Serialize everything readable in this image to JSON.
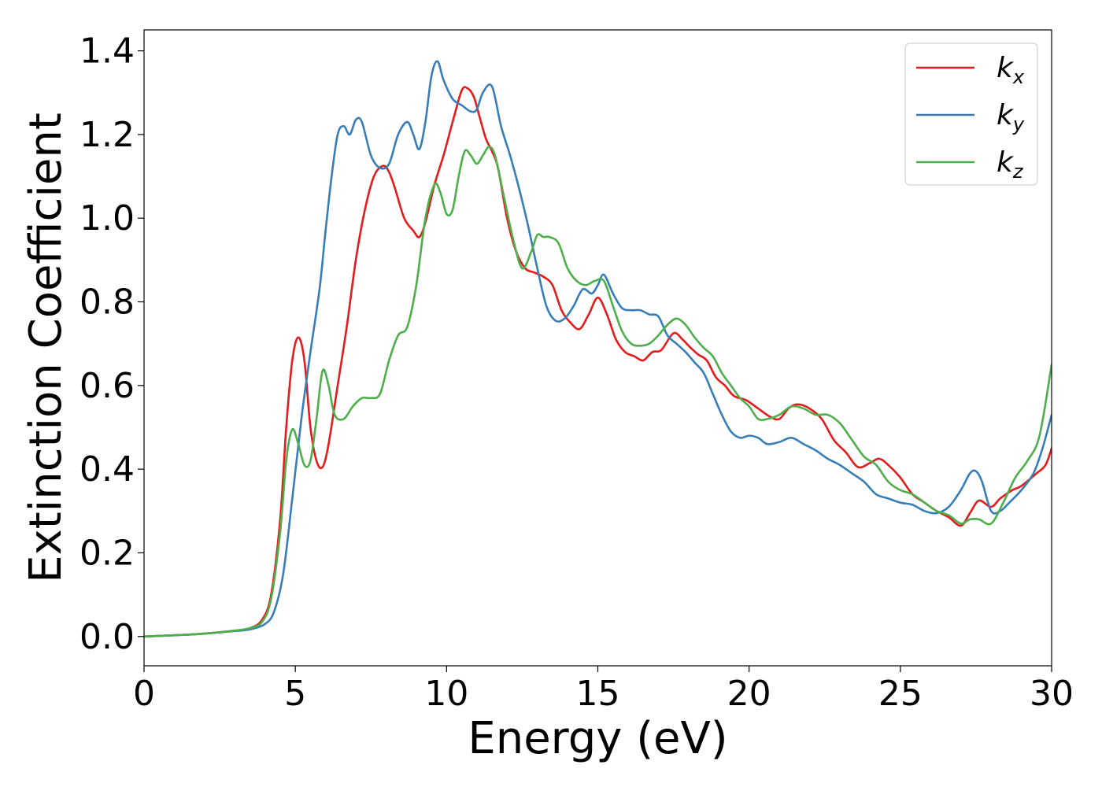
{
  "chart_data": {
    "type": "line",
    "title": "",
    "xlabel": "Energy (eV)",
    "ylabel": "Extinction Coefficient",
    "xlim": [
      0,
      30
    ],
    "ylim": [
      -0.07,
      1.45
    ],
    "xticks": [
      0,
      5,
      10,
      15,
      20,
      25,
      30
    ],
    "xtick_labels": [
      "0",
      "5",
      "10",
      "15",
      "20",
      "25",
      "30"
    ],
    "yticks": [
      0.0,
      0.2,
      0.4,
      0.6,
      0.8,
      1.0,
      1.2,
      1.4
    ],
    "ytick_labels": [
      "0.0",
      "0.2",
      "0.4",
      "0.6",
      "0.8",
      "1.0",
      "1.2",
      "1.4"
    ],
    "grid": false,
    "legend_position": "top-right",
    "series": [
      {
        "name": "k",
        "subscript": "x",
        "color": "#e41a1c",
        "x": [
          0,
          1,
          2,
          3,
          3.5,
          3.9,
          4.2,
          4.5,
          4.7,
          4.9,
          5.1,
          5.3,
          5.5,
          5.7,
          5.9,
          6.1,
          6.4,
          6.7,
          7.0,
          7.3,
          7.6,
          7.9,
          8.1,
          8.3,
          8.6,
          8.9,
          9.1,
          9.3,
          9.6,
          9.9,
          10.2,
          10.5,
          10.7,
          10.9,
          11.1,
          11.3,
          11.5,
          11.7,
          12.0,
          12.3,
          12.6,
          12.9,
          13.2,
          13.5,
          13.8,
          14.1,
          14.4,
          14.7,
          15.0,
          15.3,
          15.6,
          15.9,
          16.2,
          16.5,
          16.8,
          17.1,
          17.5,
          17.8,
          18.0,
          18.3,
          18.6,
          18.9,
          19.2,
          19.5,
          19.9,
          20.3,
          20.7,
          21.0,
          21.3,
          21.6,
          22.0,
          22.4,
          22.8,
          23.2,
          23.6,
          24.0,
          24.3,
          24.6,
          25.0,
          25.4,
          25.8,
          26.2,
          26.6,
          27.0,
          27.3,
          27.6,
          28.0,
          28.3,
          28.7,
          29.0,
          29.5,
          29.8,
          30.0
        ],
        "y": [
          0.0,
          0.003,
          0.007,
          0.014,
          0.02,
          0.04,
          0.1,
          0.28,
          0.5,
          0.66,
          0.715,
          0.66,
          0.5,
          0.42,
          0.405,
          0.46,
          0.6,
          0.74,
          0.9,
          1.02,
          1.1,
          1.125,
          1.11,
          1.07,
          1.0,
          0.97,
          0.955,
          0.99,
          1.08,
          1.15,
          1.23,
          1.305,
          1.31,
          1.29,
          1.24,
          1.19,
          1.16,
          1.12,
          1.0,
          0.92,
          0.88,
          0.87,
          0.86,
          0.84,
          0.78,
          0.75,
          0.735,
          0.77,
          0.81,
          0.77,
          0.71,
          0.68,
          0.67,
          0.66,
          0.68,
          0.685,
          0.725,
          0.71,
          0.695,
          0.675,
          0.66,
          0.62,
          0.6,
          0.575,
          0.565,
          0.545,
          0.525,
          0.52,
          0.545,
          0.555,
          0.545,
          0.52,
          0.47,
          0.44,
          0.405,
          0.415,
          0.425,
          0.41,
          0.38,
          0.34,
          0.32,
          0.3,
          0.285,
          0.265,
          0.295,
          0.325,
          0.31,
          0.33,
          0.35,
          0.36,
          0.39,
          0.41,
          0.45
        ]
      },
      {
        "name": "k",
        "subscript": "y",
        "color": "#377eb8",
        "x": [
          0,
          1,
          2,
          3,
          3.5,
          4.0,
          4.3,
          4.6,
          4.9,
          5.2,
          5.5,
          5.8,
          6.0,
          6.2,
          6.4,
          6.6,
          6.8,
          7.0,
          7.2,
          7.5,
          7.8,
          8.1,
          8.4,
          8.7,
          8.9,
          9.1,
          9.3,
          9.5,
          9.7,
          9.9,
          10.2,
          10.5,
          10.8,
          11.0,
          11.2,
          11.5,
          11.8,
          12.1,
          12.4,
          12.7,
          13.0,
          13.3,
          13.6,
          13.9,
          14.2,
          14.5,
          14.8,
          15.0,
          15.2,
          15.5,
          15.8,
          16.1,
          16.4,
          16.7,
          17.0,
          17.3,
          17.6,
          17.9,
          18.2,
          18.5,
          18.8,
          19.1,
          19.4,
          19.7,
          20.0,
          20.3,
          20.6,
          21.0,
          21.4,
          21.8,
          22.2,
          22.6,
          23.0,
          23.4,
          23.8,
          24.2,
          24.6,
          25.0,
          25.4,
          25.8,
          26.2,
          26.6,
          27.0,
          27.3,
          27.5,
          27.7,
          28.0,
          28.3,
          28.6,
          29.0,
          29.4,
          29.7,
          30.0
        ],
        "y": [
          0.0,
          0.003,
          0.007,
          0.013,
          0.017,
          0.03,
          0.06,
          0.15,
          0.33,
          0.52,
          0.68,
          0.83,
          0.97,
          1.1,
          1.2,
          1.22,
          1.2,
          1.235,
          1.23,
          1.15,
          1.12,
          1.13,
          1.2,
          1.23,
          1.2,
          1.165,
          1.23,
          1.34,
          1.375,
          1.33,
          1.285,
          1.27,
          1.255,
          1.26,
          1.3,
          1.315,
          1.22,
          1.15,
          1.07,
          0.98,
          0.88,
          0.79,
          0.755,
          0.76,
          0.79,
          0.83,
          0.82,
          0.84,
          0.865,
          0.82,
          0.785,
          0.78,
          0.78,
          0.77,
          0.765,
          0.72,
          0.7,
          0.68,
          0.655,
          0.63,
          0.58,
          0.53,
          0.49,
          0.475,
          0.48,
          0.475,
          0.46,
          0.465,
          0.475,
          0.46,
          0.445,
          0.425,
          0.41,
          0.39,
          0.37,
          0.34,
          0.33,
          0.32,
          0.315,
          0.3,
          0.295,
          0.31,
          0.35,
          0.39,
          0.395,
          0.37,
          0.3,
          0.3,
          0.32,
          0.35,
          0.39,
          0.45,
          0.53
        ]
      },
      {
        "name": "k",
        "subscript": "z",
        "color": "#4daf4a",
        "x": [
          0,
          1,
          2,
          3,
          3.5,
          3.9,
          4.2,
          4.5,
          4.7,
          4.9,
          5.1,
          5.3,
          5.5,
          5.7,
          5.9,
          6.1,
          6.3,
          6.6,
          6.9,
          7.2,
          7.5,
          7.8,
          8.1,
          8.4,
          8.7,
          9.0,
          9.3,
          9.6,
          9.8,
          10.0,
          10.2,
          10.4,
          10.6,
          10.8,
          11.0,
          11.2,
          11.4,
          11.6,
          11.9,
          12.2,
          12.5,
          12.8,
          13.0,
          13.2,
          13.4,
          13.7,
          14.0,
          14.3,
          14.6,
          14.9,
          15.2,
          15.5,
          15.8,
          16.1,
          16.4,
          16.7,
          17.0,
          17.3,
          17.6,
          17.9,
          18.2,
          18.5,
          18.8,
          19.1,
          19.4,
          19.7,
          20.0,
          20.3,
          20.6,
          21.0,
          21.4,
          21.8,
          22.2,
          22.6,
          23.0,
          23.4,
          23.8,
          24.2,
          24.6,
          25.0,
          25.4,
          25.8,
          26.2,
          26.6,
          27.0,
          27.3,
          27.6,
          28.0,
          28.4,
          28.8,
          29.2,
          29.6,
          30.0
        ],
        "y": [
          0.0,
          0.003,
          0.007,
          0.014,
          0.02,
          0.035,
          0.09,
          0.25,
          0.42,
          0.495,
          0.46,
          0.41,
          0.42,
          0.52,
          0.635,
          0.6,
          0.53,
          0.52,
          0.55,
          0.57,
          0.57,
          0.58,
          0.66,
          0.72,
          0.74,
          0.84,
          1.0,
          1.08,
          1.06,
          1.01,
          1.02,
          1.1,
          1.16,
          1.15,
          1.13,
          1.15,
          1.17,
          1.15,
          1.05,
          0.95,
          0.88,
          0.92,
          0.96,
          0.955,
          0.955,
          0.94,
          0.88,
          0.85,
          0.84,
          0.85,
          0.85,
          0.79,
          0.73,
          0.7,
          0.695,
          0.7,
          0.72,
          0.745,
          0.76,
          0.745,
          0.715,
          0.69,
          0.67,
          0.63,
          0.6,
          0.57,
          0.55,
          0.52,
          0.52,
          0.53,
          0.55,
          0.545,
          0.53,
          0.53,
          0.51,
          0.47,
          0.43,
          0.41,
          0.37,
          0.35,
          0.34,
          0.32,
          0.3,
          0.29,
          0.27,
          0.28,
          0.28,
          0.27,
          0.32,
          0.38,
          0.42,
          0.48,
          0.65
        ]
      }
    ]
  }
}
